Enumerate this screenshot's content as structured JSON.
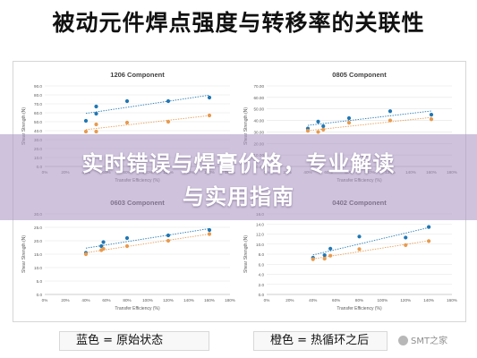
{
  "title": "被动元件焊点强度与转移率的关联性",
  "overlay": {
    "line1": "实时错误与焊膏价格，专业解读",
    "line2": "与实用指南"
  },
  "legend": {
    "blue": "蓝色 = 原始状态",
    "orange": "橙色 = 热循环之后"
  },
  "watermark": "SMT之家",
  "colors": {
    "blue": "#1f77b4",
    "orange": "#e89a4e",
    "grid": "#e4e4e4",
    "axis_text": "#595959"
  },
  "chart_data": [
    {
      "type": "scatter",
      "title": "1206 Component",
      "xlabel": "Transfer Efficiency (%)",
      "ylabel": "Shear Strength (N)",
      "xlim": [
        0,
        180
      ],
      "ylim": [
        0,
        90
      ],
      "xticks": [
        "0%",
        "20%",
        "40%",
        "60%",
        "80%",
        "100%",
        "120%",
        "140%",
        "160%",
        "180%"
      ],
      "yticks": [
        "0.0",
        "10.0",
        "20.0",
        "30.0",
        "40.0",
        "50.0",
        "60.0",
        "70.0",
        "80.0",
        "90.0"
      ],
      "series": [
        {
          "color": "blue",
          "points": [
            [
              40,
              51
            ],
            [
              50,
              59
            ],
            [
              50,
              67
            ],
            [
              80,
              73
            ],
            [
              120,
              73
            ],
            [
              160,
              77
            ]
          ]
        },
        {
          "color": "orange",
          "points": [
            [
              40,
              39
            ],
            [
              50,
              39
            ],
            [
              50,
              47
            ],
            [
              80,
              49
            ],
            [
              120,
              50
            ],
            [
              160,
              57
            ]
          ]
        }
      ]
    },
    {
      "type": "scatter",
      "title": "0805 Component",
      "xlabel": "Transfer Efficiency (%)",
      "ylabel": "Shear Strength (N)",
      "xlim": [
        0,
        180
      ],
      "ylim": [
        0,
        70
      ],
      "xticks": [
        "0%",
        "20%",
        "40%",
        "60%",
        "80%",
        "100%",
        "120%",
        "140%",
        "160%",
        "180%"
      ],
      "yticks": [
        "0.00",
        "10.00",
        "20.00",
        "30.00",
        "40.00",
        "50.00",
        "60.00",
        "70.00"
      ],
      "series": [
        {
          "color": "blue",
          "points": [
            [
              40,
              33
            ],
            [
              50,
              39
            ],
            [
              55,
              35
            ],
            [
              80,
              42
            ],
            [
              120,
              48
            ],
            [
              160,
              45
            ]
          ]
        },
        {
          "color": "orange",
          "points": [
            [
              40,
              31
            ],
            [
              50,
              30
            ],
            [
              55,
              32
            ],
            [
              80,
              38
            ],
            [
              120,
              40
            ],
            [
              160,
              41
            ]
          ]
        }
      ]
    },
    {
      "type": "scatter",
      "title": "0603 Component",
      "xlabel": "Transfer Efficiency (%)",
      "ylabel": "Shear Strength (N)",
      "xlim": [
        0,
        180
      ],
      "ylim": [
        0,
        30
      ],
      "xticks": [
        "0%",
        "20%",
        "40%",
        "60%",
        "80%",
        "100%",
        "120%",
        "140%",
        "160%",
        "180%"
      ],
      "yticks": [
        "0.0",
        "5.0",
        "10.0",
        "15.0",
        "20.0",
        "25.0",
        "30.0"
      ],
      "series": [
        {
          "color": "blue",
          "points": [
            [
              40,
              15.5
            ],
            [
              55,
              18
            ],
            [
              57,
              19.5
            ],
            [
              80,
              21
            ],
            [
              120,
              22
            ],
            [
              160,
              24
            ]
          ]
        },
        {
          "color": "orange",
          "points": [
            [
              40,
              15
            ],
            [
              55,
              16.5
            ],
            [
              57,
              17
            ],
            [
              80,
              18
            ],
            [
              120,
              20
            ],
            [
              160,
              22.5
            ]
          ]
        }
      ]
    },
    {
      "type": "scatter",
      "title": "0402 Component",
      "xlabel": "Transfer Efficiency (%)",
      "ylabel": "Shear Strength (N)",
      "xlim": [
        0,
        160
      ],
      "ylim": [
        0,
        16
      ],
      "xticks": [
        "0%",
        "20%",
        "40%",
        "60%",
        "80%",
        "100%",
        "120%",
        "140%",
        "160%"
      ],
      "yticks": [
        "0.0",
        "2.0",
        "4.0",
        "6.0",
        "8.0",
        "10.0",
        "12.0",
        "14.0",
        "16.0"
      ],
      "series": [
        {
          "color": "blue",
          "points": [
            [
              40,
              7.3
            ],
            [
              50,
              7.8
            ],
            [
              55,
              9.1
            ],
            [
              80,
              11.5
            ],
            [
              120,
              11.3
            ],
            [
              140,
              13.4
            ]
          ]
        },
        {
          "color": "orange",
          "points": [
            [
              40,
              7
            ],
            [
              50,
              7.1
            ],
            [
              55,
              7.7
            ],
            [
              80,
              9
            ],
            [
              120,
              9.8
            ],
            [
              140,
              10.6
            ]
          ]
        }
      ]
    }
  ]
}
